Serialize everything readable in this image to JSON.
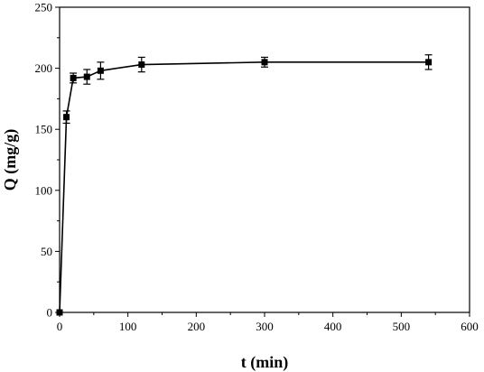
{
  "chart_data": {
    "type": "line",
    "title": "",
    "xlabel": "t (min)",
    "ylabel": "Q (mg/g)",
    "xlim": [
      0,
      600
    ],
    "ylim": [
      0,
      250
    ],
    "x_ticks": [
      0,
      100,
      200,
      300,
      400,
      500,
      600
    ],
    "y_ticks": [
      0,
      50,
      100,
      150,
      200,
      250
    ],
    "x_tick_labels": [
      "0",
      "100",
      "200",
      "300",
      "400",
      "500",
      "600"
    ],
    "y_tick_labels": [
      "0",
      "50",
      "100",
      "150",
      "200",
      "250"
    ],
    "grid": false,
    "legend": "none",
    "series": [
      {
        "marker": "square",
        "color": "#000000",
        "points": [
          {
            "x": 0,
            "y": 0,
            "err": 0
          },
          {
            "x": 10,
            "y": 160,
            "err": 5
          },
          {
            "x": 20,
            "y": 192,
            "err": 4
          },
          {
            "x": 40,
            "y": 193,
            "err": 6
          },
          {
            "x": 60,
            "y": 198,
            "err": 7
          },
          {
            "x": 120,
            "y": 203,
            "err": 6
          },
          {
            "x": 300,
            "y": 205,
            "err": 4
          },
          {
            "x": 540,
            "y": 205,
            "err": 6
          }
        ]
      }
    ]
  }
}
